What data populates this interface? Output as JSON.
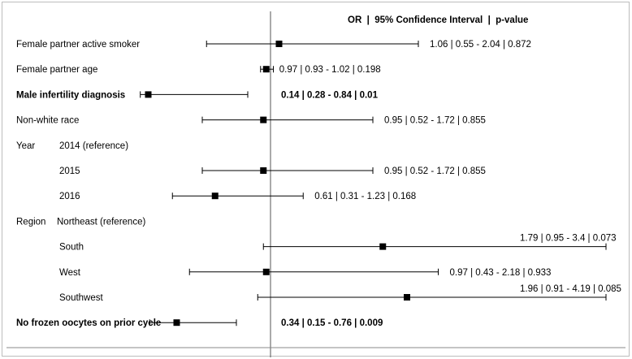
{
  "chart_data": {
    "type": "forest",
    "header": "OR  |  95% Confidence Interval  |  p-value",
    "reference_value": 1,
    "rows": [
      {
        "group": "",
        "label": "Female partner active smoker",
        "or": 1.06,
        "ci_low": 0.55,
        "ci_high": 2.04,
        "text": "1.06 | 0.55 - 2.04 | 0.872",
        "bold": false
      },
      {
        "group": "",
        "label": "Female partner age",
        "or": 0.97,
        "ci_low": 0.93,
        "ci_high": 1.02,
        "text": "0.97 | 0.93 - 1.02 | 0.198",
        "bold": false
      },
      {
        "group": "",
        "label": "Male infertility diagnosis",
        "or": 0.14,
        "ci_low": 0.28,
        "ci_high": 0.84,
        "text": "0.14 | 0.28 - 0.84 | 0.01",
        "bold": true
      },
      {
        "group": "",
        "label": "Non-white race",
        "or": 0.95,
        "ci_low": 0.52,
        "ci_high": 1.72,
        "text": "0.95 | 0.52 - 1.72 | 0.855",
        "bold": false
      },
      {
        "group": "Year",
        "label": "2014 (reference)",
        "or": null,
        "ci_low": null,
        "ci_high": null,
        "text": "",
        "bold": false
      },
      {
        "group": "",
        "label": "2015",
        "or": 0.95,
        "ci_low": 0.52,
        "ci_high": 1.72,
        "text": "0.95 | 0.52 - 1.72 | 0.855",
        "bold": false
      },
      {
        "group": "",
        "label": "2016",
        "or": 0.61,
        "ci_low": 0.31,
        "ci_high": 1.23,
        "text": "0.61 | 0.31 - 1.23 | 0.168",
        "bold": false
      },
      {
        "group": "Region",
        "label": "Northeast (reference)",
        "or": null,
        "ci_low": null,
        "ci_high": null,
        "text": "",
        "bold": false
      },
      {
        "group": "",
        "label": "South",
        "or": 1.79,
        "ci_low": 0.95,
        "ci_high": 3.4,
        "text": "1.79 | 0.95 - 3.4 | 0.073",
        "bold": false
      },
      {
        "group": "",
        "label": "West",
        "or": 0.97,
        "ci_low": 0.43,
        "ci_high": 2.18,
        "text": "0.97 | 0.43 - 2.18 | 0.933",
        "bold": false
      },
      {
        "group": "",
        "label": "Southwest",
        "or": 1.96,
        "ci_low": 0.91,
        "ci_high": 4.19,
        "text": "1.96 | 0.91 - 4.19 | 0.085",
        "bold": false
      },
      {
        "group": "",
        "label": "No frozen oocytes on prior cycle",
        "or": 0.34,
        "ci_low": 0.15,
        "ci_high": 0.76,
        "text": "0.34 | 0.15 - 0.76 | 0.009",
        "bold": true
      }
    ]
  }
}
